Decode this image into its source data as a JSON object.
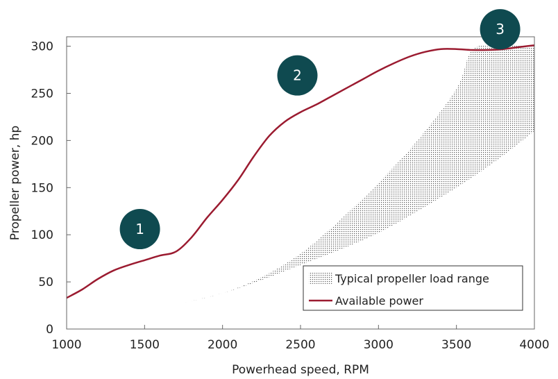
{
  "chart_data": {
    "type": "line",
    "xlabel": "Powerhead speed, RPM",
    "ylabel": "Propeller power, hp",
    "xlim": [
      1000,
      4000
    ],
    "ylim": [
      0,
      310
    ],
    "x_ticks": [
      "1000",
      "1500",
      "2000",
      "2500",
      "3000",
      "3500",
      "4000"
    ],
    "y_ticks": [
      "0",
      "50",
      "100",
      "150",
      "200",
      "250",
      "300"
    ],
    "grid": false,
    "legend_position": "bottom-right",
    "series": [
      {
        "name": "Available power",
        "color": "#9b1b30",
        "points": [
          [
            1000,
            33
          ],
          [
            1100,
            42
          ],
          [
            1200,
            53
          ],
          [
            1300,
            62
          ],
          [
            1400,
            68
          ],
          [
            1500,
            73
          ],
          [
            1600,
            78
          ],
          [
            1700,
            82
          ],
          [
            1800,
            97
          ],
          [
            1900,
            118
          ],
          [
            2000,
            137
          ],
          [
            2100,
            158
          ],
          [
            2200,
            183
          ],
          [
            2300,
            205
          ],
          [
            2400,
            220
          ],
          [
            2500,
            230
          ],
          [
            2600,
            238
          ],
          [
            2700,
            247
          ],
          [
            2800,
            256
          ],
          [
            2900,
            265
          ],
          [
            3000,
            274
          ],
          [
            3100,
            282
          ],
          [
            3200,
            289
          ],
          [
            3300,
            294
          ],
          [
            3400,
            297
          ],
          [
            3500,
            297
          ],
          [
            3600,
            296
          ],
          [
            3700,
            296
          ],
          [
            3800,
            297
          ],
          [
            3900,
            299
          ],
          [
            4000,
            301
          ]
        ]
      }
    ],
    "bands": [
      {
        "name": "Typical propeller load range",
        "color": "#777777",
        "lower": [
          [
            1000,
            7
          ],
          [
            1250,
            13
          ],
          [
            1500,
            20
          ],
          [
            1750,
            28
          ],
          [
            2000,
            38
          ],
          [
            2250,
            52
          ],
          [
            2500,
            68
          ],
          [
            2750,
            84
          ],
          [
            3000,
            102
          ],
          [
            3250,
            125
          ],
          [
            3500,
            150
          ],
          [
            3750,
            178
          ],
          [
            4000,
            210
          ]
        ],
        "upper": [
          [
            1000,
            7
          ],
          [
            1250,
            13
          ],
          [
            1500,
            20
          ],
          [
            1750,
            28
          ],
          [
            2000,
            38
          ],
          [
            2250,
            55
          ],
          [
            2500,
            80
          ],
          [
            2750,
            115
          ],
          [
            3000,
            155
          ],
          [
            3250,
            200
          ],
          [
            3500,
            255
          ],
          [
            3600,
            296
          ],
          [
            3750,
            300
          ],
          [
            4000,
            301
          ]
        ]
      }
    ],
    "annotations": [
      {
        "label": "1",
        "x": 1470,
        "y": 106
      },
      {
        "label": "2",
        "x": 2480,
        "y": 269
      },
      {
        "label": "3",
        "x": 3780,
        "y": 318
      }
    ],
    "marker_color": "#0f4a50"
  }
}
